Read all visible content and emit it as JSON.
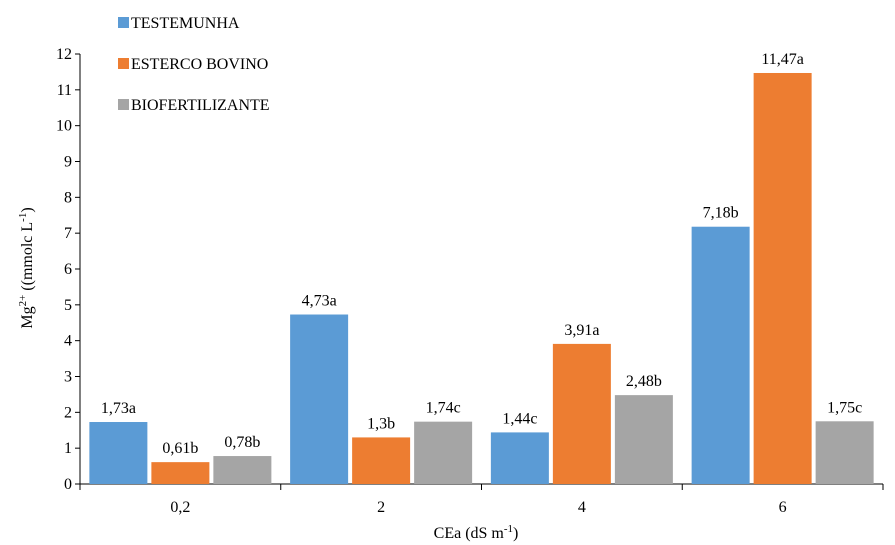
{
  "chart_data": {
    "type": "bar",
    "categories": [
      "0,2",
      "2",
      "4",
      "6"
    ],
    "series": [
      {
        "name": "TESTEMUNHA",
        "color": "#5B9BD5",
        "values": [
          1.73,
          4.73,
          1.44,
          7.18
        ],
        "labels": [
          "1,73a",
          "4,73a",
          "1,44c",
          "7,18b"
        ]
      },
      {
        "name": "ESTERCO BOVINO",
        "color": "#ED7D31",
        "values": [
          0.61,
          1.3,
          3.91,
          11.47
        ],
        "labels": [
          "0,61b",
          "1,3b",
          "3,91a",
          "11,47a"
        ]
      },
      {
        "name": "BIOFERTILIZANTE",
        "color": "#A5A5A5",
        "values": [
          0.78,
          1.74,
          2.48,
          1.75
        ],
        "labels": [
          "0,78b",
          "1,74c",
          "2,48b",
          "1,75c"
        ]
      }
    ],
    "ylim": [
      0,
      12
    ],
    "yticks": [
      0,
      1,
      2,
      3,
      4,
      5,
      6,
      7,
      8,
      9,
      10,
      11,
      12
    ],
    "xlabel": {
      "main": "CEa (dS m",
      "sup": "-1",
      "end": ")"
    },
    "ylabel": {
      "base": "Mg",
      "sup": "2+",
      "mid": " ((mmolc L",
      "sup2": "-1",
      "end": ")"
    },
    "legend_position": "top-left",
    "grid": false
  }
}
